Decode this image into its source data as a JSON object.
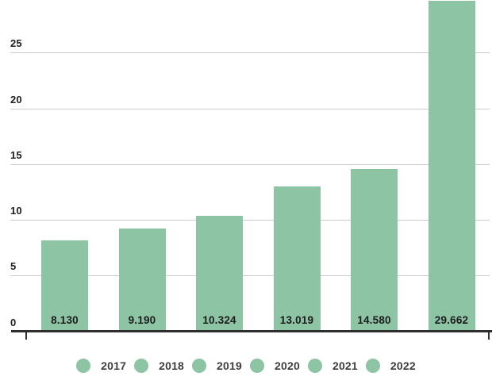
{
  "chart_data": {
    "type": "bar",
    "title": "",
    "xlabel": "",
    "ylabel": "",
    "categories": [
      "2017",
      "2018",
      "2019",
      "2020",
      "2021",
      "2022"
    ],
    "values": [
      8.13,
      9.19,
      10.324,
      13.019,
      14.58,
      29.662
    ],
    "bar_labels": [
      "8.130",
      "9.190",
      "10.324",
      "13.019",
      "14.580",
      "29.662"
    ],
    "yticks": [
      0,
      5,
      10,
      15,
      20,
      25
    ],
    "ytick_labels": [
      "0",
      "5",
      "10",
      "15",
      "20",
      "25"
    ],
    "ylim": [
      0,
      30
    ],
    "grid": true,
    "legend": {
      "position": "bottom",
      "marker": "circle",
      "entries": [
        "2017",
        "2018",
        "2019",
        "2020",
        "2021",
        "2022"
      ]
    },
    "colors": {
      "bar": "#8cc4a4",
      "grid": "#cccccc",
      "axis": "#2e2e2e",
      "bar_label": "#1c1c1c",
      "tick_label": "#202020",
      "legend_text": "#3d3d3d"
    }
  }
}
